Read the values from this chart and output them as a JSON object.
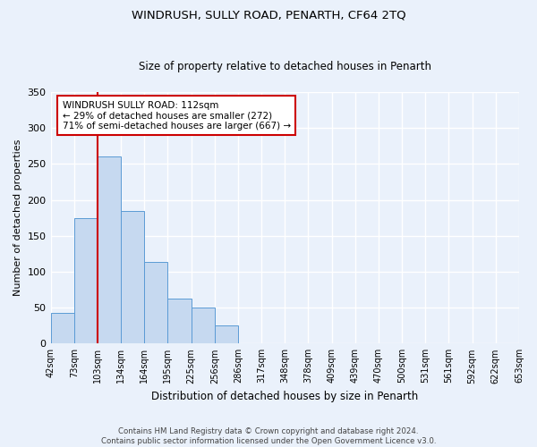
{
  "title": "WINDRUSH, SULLY ROAD, PENARTH, CF64 2TQ",
  "subtitle": "Size of property relative to detached houses in Penarth",
  "xlabel": "Distribution of detached houses by size in Penarth",
  "ylabel": "Number of detached properties",
  "bar_values": [
    43,
    174,
    260,
    184,
    114,
    63,
    50,
    25,
    0,
    0,
    0,
    0,
    0,
    0,
    0,
    0,
    0,
    0,
    0,
    1
  ],
  "bin_labels": [
    "42sqm",
    "73sqm",
    "103sqm",
    "134sqm",
    "164sqm",
    "195sqm",
    "225sqm",
    "256sqm",
    "286sqm",
    "317sqm",
    "348sqm",
    "378sqm",
    "409sqm",
    "439sqm",
    "470sqm",
    "500sqm",
    "531sqm",
    "561sqm",
    "592sqm",
    "622sqm",
    "653sqm"
  ],
  "bar_color": "#c6d9f0",
  "bar_edge_color": "#5b9bd5",
  "vline_x_index": 2,
  "vline_color": "#cc0000",
  "annotation_text": "WINDRUSH SULLY ROAD: 112sqm\n← 29% of detached houses are smaller (272)\n71% of semi-detached houses are larger (667) →",
  "annotation_box_color": "#ffffff",
  "annotation_box_edge": "#cc0000",
  "ylim": [
    0,
    350
  ],
  "yticks": [
    0,
    50,
    100,
    150,
    200,
    250,
    300,
    350
  ],
  "footer_line1": "Contains HM Land Registry data © Crown copyright and database right 2024.",
  "footer_line2": "Contains public sector information licensed under the Open Government Licence v3.0.",
  "background_color": "#eaf1fb",
  "plot_background": "#eaf1fb",
  "grid_color": "#ffffff",
  "title_fontsize": 9.5,
  "subtitle_fontsize": 8.5
}
